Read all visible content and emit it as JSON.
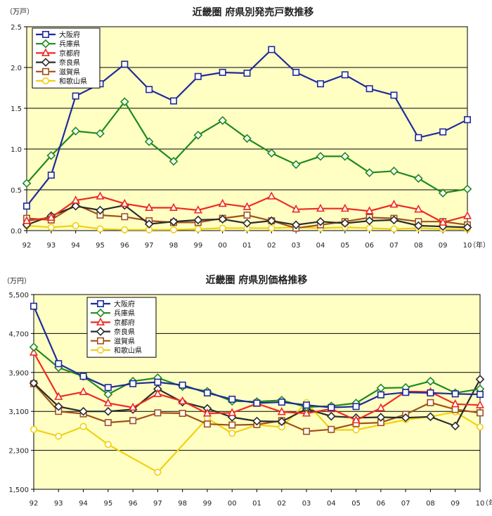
{
  "chart_data": [
    {
      "type": "line",
      "title": "近畿圏 府県別発売戸数推移",
      "unit_label": "（万戸）",
      "x_unit": "（年）",
      "categories": [
        "92",
        "93",
        "94",
        "95",
        "96",
        "97",
        "98",
        "99",
        "00",
        "01",
        "02",
        "03",
        "04",
        "05",
        "06",
        "07",
        "08",
        "09",
        "10"
      ],
      "ylim": [
        0,
        2.5
      ],
      "yticks": [
        "0.0",
        "0.5",
        "1.0",
        "1.5",
        "2.0",
        "2.5"
      ],
      "grid": true,
      "legend_position": "top-left",
      "series": [
        {
          "name": "大阪府",
          "color": "#1f2a9a",
          "marker": "square-open",
          "values": [
            0.3,
            0.68,
            1.65,
            1.8,
            2.04,
            1.73,
            1.59,
            1.89,
            1.94,
            1.93,
            2.22,
            1.94,
            1.8,
            1.91,
            1.74,
            1.66,
            1.14,
            1.21,
            1.36
          ]
        },
        {
          "name": "兵庫県",
          "color": "#1e8a1e",
          "marker": "diamond-open",
          "values": [
            0.58,
            0.92,
            1.22,
            1.19,
            1.58,
            1.09,
            0.85,
            1.17,
            1.35,
            1.13,
            0.95,
            0.81,
            0.91,
            0.91,
            0.71,
            0.73,
            0.64,
            0.46,
            0.51
          ]
        },
        {
          "name": "京都府",
          "color": "#ee2b24",
          "marker": "triangle-open",
          "values": [
            0.12,
            0.16,
            0.37,
            0.42,
            0.33,
            0.28,
            0.28,
            0.25,
            0.33,
            0.29,
            0.42,
            0.26,
            0.27,
            0.27,
            0.24,
            0.32,
            0.26,
            0.1,
            0.18
          ]
        },
        {
          "name": "奈良県",
          "color": "#2b2b2b",
          "marker": "diamond-open",
          "values": [
            0.07,
            0.18,
            0.3,
            0.25,
            0.31,
            0.08,
            0.11,
            0.13,
            0.14,
            0.09,
            0.12,
            0.07,
            0.11,
            0.09,
            0.12,
            0.13,
            0.06,
            0.05,
            0.04
          ]
        },
        {
          "name": "滋賀県",
          "color": "#a0521a",
          "marker": "square-open",
          "values": [
            0.15,
            0.13,
            0.32,
            0.19,
            0.17,
            0.12,
            0.1,
            0.1,
            0.15,
            0.19,
            0.12,
            0.03,
            0.07,
            0.11,
            0.16,
            0.15,
            0.11,
            0.11,
            0.07
          ]
        },
        {
          "name": "和歌山県",
          "color": "#f2d010",
          "marker": "circle-open",
          "values": [
            0.06,
            0.04,
            0.06,
            0.02,
            0.01,
            0.01,
            0.01,
            0.02,
            0.03,
            0.03,
            0.03,
            0.04,
            0.03,
            0.04,
            0.03,
            0.02,
            0.03,
            0.02,
            0.02
          ]
        }
      ]
    },
    {
      "type": "line",
      "title": "近畿圏 府県別価格推移",
      "unit_label": "（万円）",
      "x_unit": "（年）",
      "categories": [
        "92",
        "93",
        "94",
        "95",
        "96",
        "97",
        "98",
        "99",
        "00",
        "01",
        "02",
        "03",
        "04",
        "05",
        "06",
        "07",
        "08",
        "09",
        "10"
      ],
      "ylim": [
        1500,
        5500
      ],
      "yticks": [
        "1,500",
        "2,300",
        "3,100",
        "3,900",
        "4,700",
        "5,500"
      ],
      "grid": true,
      "legend_position": "top-left",
      "series": [
        {
          "name": "大阪府",
          "color": "#1f2a9a",
          "marker": "square-open",
          "values": [
            5260,
            4080,
            3820,
            3590,
            3670,
            3700,
            3640,
            3480,
            3350,
            3270,
            3290,
            3230,
            3180,
            3200,
            3440,
            3490,
            3480,
            3460,
            3450
          ]
        },
        {
          "name": "兵庫県",
          "color": "#1e8a1e",
          "marker": "diamond-open",
          "values": [
            4420,
            4000,
            3820,
            3450,
            3720,
            3790,
            3610,
            3510,
            3310,
            3300,
            3330,
            3190,
            3210,
            3270,
            3580,
            3590,
            3720,
            3480,
            3560
          ]
        },
        {
          "name": "京都府",
          "color": "#ee2b24",
          "marker": "triangle-open",
          "values": [
            4310,
            3400,
            3500,
            3270,
            3180,
            3460,
            3310,
            3060,
            3070,
            3260,
            3090,
            3060,
            3150,
            2920,
            3170,
            3510,
            3500,
            3250,
            3230
          ]
        },
        {
          "name": "奈良県",
          "color": "#2b2b2b",
          "marker": "diamond-open",
          "values": [
            3680,
            3200,
            3100,
            3100,
            3140,
            3560,
            3290,
            3160,
            2980,
            2900,
            2890,
            3150,
            3000,
            2970,
            2980,
            2970,
            2990,
            2800,
            3760
          ]
        },
        {
          "name": "滋賀県",
          "color": "#a0521a",
          "marker": "square-open",
          "values": [
            3670,
            3100,
            3050,
            2870,
            2910,
            3070,
            3060,
            2840,
            2820,
            2830,
            2910,
            2690,
            2730,
            2850,
            2870,
            3040,
            3280,
            3140,
            3070
          ]
        },
        {
          "name": "和歌山県",
          "color": "#f2d010",
          "marker": "circle-open",
          "values": [
            2730,
            2590,
            2790,
            2420,
            null,
            1850,
            null,
            2960,
            2650,
            2820,
            2780,
            3280,
            2720,
            2720,
            null,
            2930,
            2990,
            3090,
            2780
          ]
        }
      ]
    }
  ]
}
